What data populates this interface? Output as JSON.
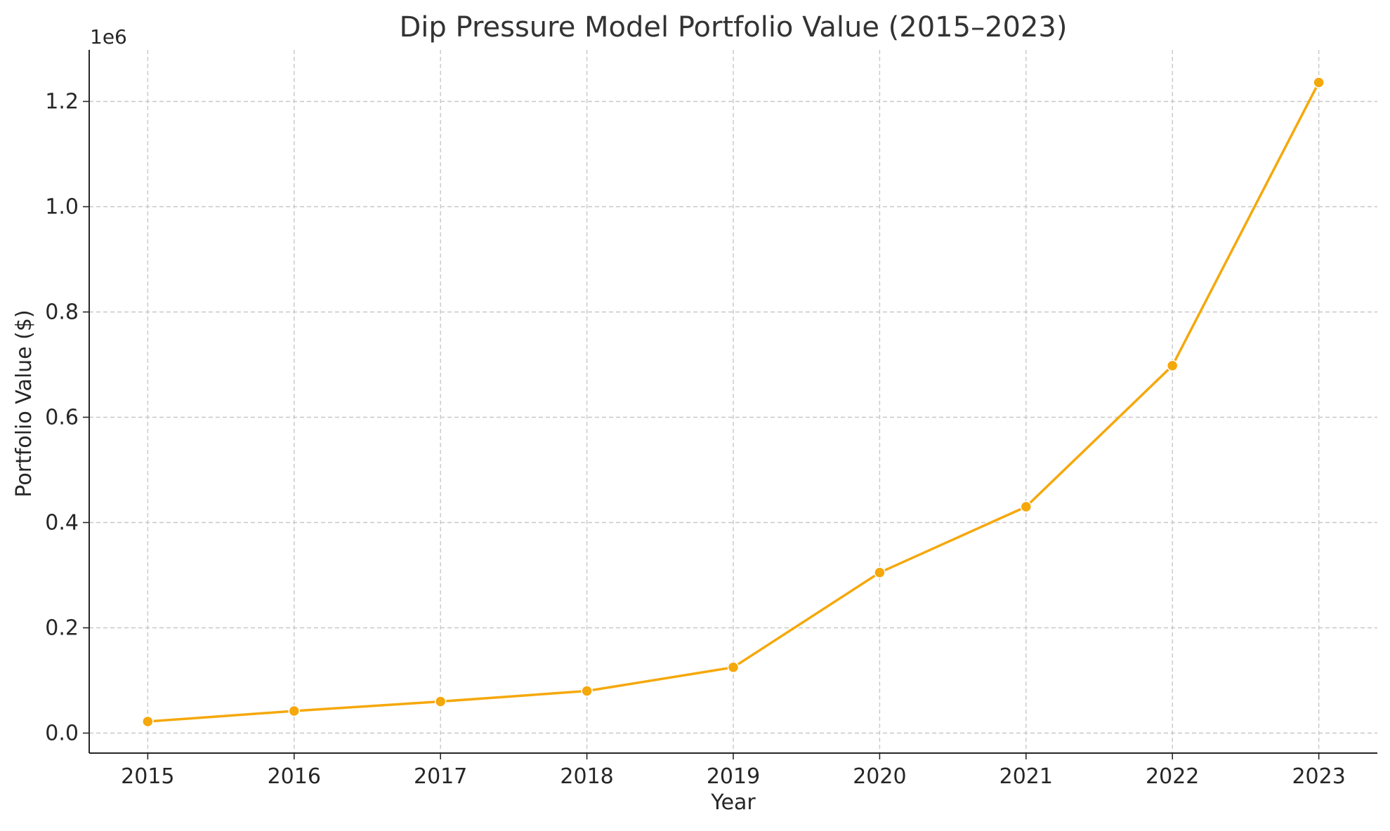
{
  "chart_data": {
    "type": "line",
    "title": "Dip Pressure Model Portfolio Value (2015–2023)",
    "xlabel": "Year",
    "ylabel": "Portfolio Value ($)",
    "y_offset_label": "1e6",
    "x": [
      2015,
      2016,
      2017,
      2018,
      2019,
      2020,
      2021,
      2022,
      2023
    ],
    "x_tick_labels": [
      "2015",
      "2016",
      "2017",
      "2018",
      "2019",
      "2020",
      "2021",
      "2022",
      "2023"
    ],
    "series": [
      {
        "values": [
          22000,
          42000,
          60000,
          80000,
          125000,
          305000,
          430000,
          698000,
          1236000
        ],
        "color": "#F5A80B",
        "marker": "circle"
      }
    ],
    "y_ticks": [
      0.0,
      0.2,
      0.4,
      0.6,
      0.8,
      1.0,
      1.2
    ],
    "y_tick_labels": [
      "0.0",
      "0.2",
      "0.4",
      "0.6",
      "0.8",
      "1.0",
      "1.2"
    ],
    "ylim": [
      -38000,
      1298000
    ],
    "xlim": [
      2014.6,
      2023.4
    ],
    "grid": true,
    "grid_style": "dashed",
    "legend": "none"
  }
}
